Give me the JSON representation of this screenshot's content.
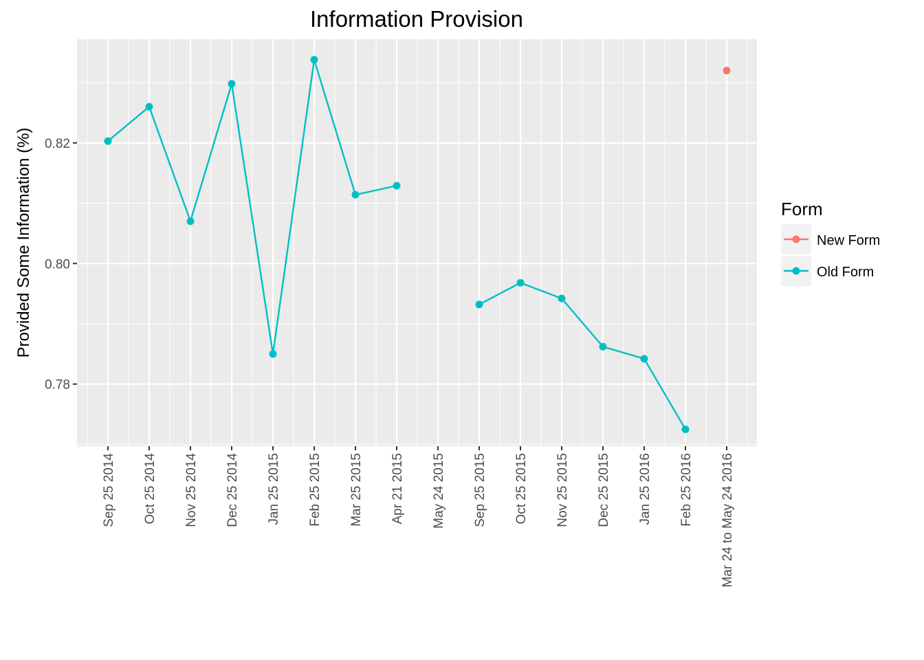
{
  "chart_data": {
    "type": "line",
    "title": "Information Provision",
    "xlabel": "",
    "ylabel": "Provided Some Information (%)",
    "categories": [
      "Sep 25 2014",
      "Oct 25 2014",
      "Nov 25 2014",
      "Dec 25 2014",
      "Jan 25 2015",
      "Feb 25 2015",
      "Mar 25 2015",
      "Apr 21 2015",
      "May 24 2015",
      "Sep 25 2015",
      "Oct 25 2015",
      "Nov 25 2015",
      "Dec 25 2015",
      "Jan 25 2016",
      "Feb 25 2016",
      "Mar 24 to May 24 2016"
    ],
    "ylim": [
      0.7697,
      0.8372
    ],
    "yticks": [
      0.78,
      0.8,
      0.82
    ],
    "ytick_labels": [
      "0.78",
      "0.80",
      "0.82"
    ],
    "grid": true,
    "legend": {
      "title": "Form",
      "position": "right"
    },
    "series": [
      {
        "name": "New Form",
        "color": "#F8766D",
        "values": [
          null,
          null,
          null,
          null,
          null,
          null,
          null,
          null,
          null,
          null,
          null,
          null,
          null,
          null,
          null,
          0.832
        ]
      },
      {
        "name": "Old Form",
        "color": "#00BFC4",
        "values": [
          0.8203,
          0.826,
          0.807,
          0.8298,
          0.785,
          0.8338,
          0.8114,
          0.8129,
          null,
          0.7932,
          0.7968,
          0.7942,
          0.7862,
          0.7842,
          0.7725,
          null
        ]
      }
    ]
  }
}
